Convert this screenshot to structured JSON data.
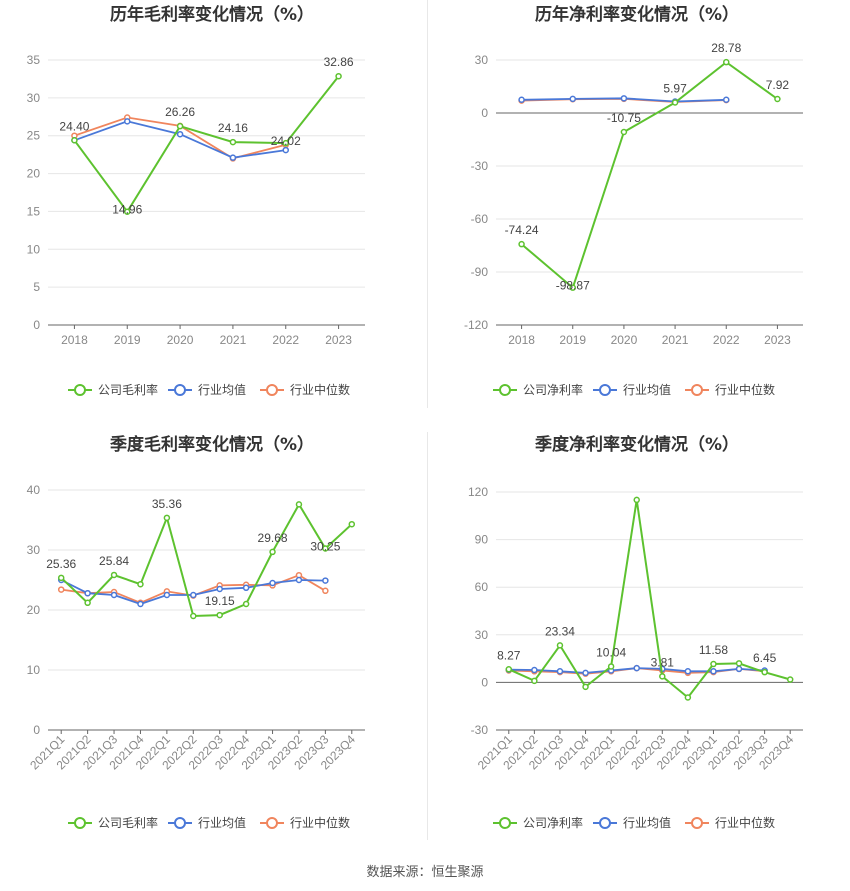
{
  "source_label": "数据来源：恒生聚源",
  "colors": {
    "company": "#5dc22f",
    "average": "#4a78d8",
    "median": "#f0855d"
  },
  "chart_data": [
    {
      "id": "annual-gross",
      "type": "line",
      "title": "历年毛利率变化情况（%）",
      "categories": [
        "2018",
        "2019",
        "2020",
        "2021",
        "2022",
        "2023"
      ],
      "ylim": [
        0,
        35
      ],
      "yticks": [
        0,
        5,
        10,
        15,
        20,
        25,
        30,
        35
      ],
      "rotate_x": false,
      "series": [
        {
          "name": "公司毛利率",
          "role": "company",
          "values": [
            24.4,
            14.96,
            26.26,
            24.16,
            24.02,
            32.86
          ],
          "labels": [
            "24.40",
            "14.96",
            "26.26",
            "24.16",
            "24.02",
            "32.86"
          ]
        },
        {
          "name": "行业均值",
          "role": "average",
          "values": [
            24.4,
            26.9,
            25.2,
            22.1,
            23.1,
            null
          ]
        },
        {
          "name": "行业中位数",
          "role": "median",
          "values": [
            25.0,
            27.4,
            26.3,
            22.0,
            23.8,
            null
          ]
        }
      ]
    },
    {
      "id": "annual-net",
      "type": "line",
      "title": "历年净利率变化情况（%）",
      "categories": [
        "2018",
        "2019",
        "2020",
        "2021",
        "2022",
        "2023"
      ],
      "ylim": [
        -120,
        30
      ],
      "yticks": [
        -120,
        -90,
        -60,
        -30,
        0,
        30
      ],
      "rotate_x": false,
      "series": [
        {
          "name": "公司净利率",
          "role": "company",
          "values": [
            -74.24,
            -98.87,
            -10.75,
            5.97,
            28.78,
            7.92
          ],
          "labels": [
            "-74.24",
            "-98.87",
            "-10.75",
            "5.97",
            "28.78",
            "7.92"
          ]
        },
        {
          "name": "行业均值",
          "role": "average",
          "values": [
            7.5,
            8.0,
            8.3,
            6.5,
            7.5,
            null
          ]
        },
        {
          "name": "行业中位数",
          "role": "median",
          "values": [
            7.0,
            7.8,
            8.0,
            6.2,
            7.3,
            null
          ]
        }
      ]
    },
    {
      "id": "quarterly-gross",
      "type": "line",
      "title": "季度毛利率变化情况（%）",
      "categories": [
        "2021Q1",
        "2021Q2",
        "2021Q3",
        "2021Q4",
        "2022Q1",
        "2022Q2",
        "2022Q3",
        "2022Q4",
        "2023Q1",
        "2023Q2",
        "2023Q3",
        "2023Q4"
      ],
      "ylim": [
        0,
        40
      ],
      "yticks": [
        0,
        10,
        20,
        30,
        40
      ],
      "rotate_x": true,
      "series": [
        {
          "name": "公司毛利率",
          "role": "company",
          "values": [
            25.36,
            21.2,
            25.84,
            24.3,
            35.36,
            19.0,
            19.15,
            21.0,
            29.68,
            37.6,
            30.25,
            34.3
          ],
          "labels": [
            "25.36",
            null,
            "25.84",
            null,
            "35.36",
            null,
            "19.15",
            null,
            "29.68",
            null,
            "30.25",
            null
          ]
        },
        {
          "name": "行业均值",
          "role": "average",
          "values": [
            25.0,
            22.8,
            22.5,
            21.0,
            22.5,
            22.5,
            23.5,
            23.7,
            24.5,
            25.0,
            24.9,
            null
          ]
        },
        {
          "name": "行业中位数",
          "role": "median",
          "values": [
            23.4,
            22.8,
            23.0,
            21.2,
            23.1,
            22.4,
            24.1,
            24.2,
            24.1,
            25.8,
            23.2,
            null
          ]
        }
      ]
    },
    {
      "id": "quarterly-net",
      "type": "line",
      "title": "季度净利率变化情况（%）",
      "categories": [
        "2021Q1",
        "2021Q2",
        "2021Q3",
        "2021Q4",
        "2022Q1",
        "2022Q2",
        "2022Q3",
        "2022Q4",
        "2023Q1",
        "2023Q2",
        "2023Q3",
        "2023Q4"
      ],
      "ylim": [
        -30,
        120
      ],
      "yticks": [
        -30,
        0,
        30,
        60,
        90,
        120
      ],
      "rotate_x": true,
      "series": [
        {
          "name": "公司净利率",
          "role": "company",
          "values": [
            8.27,
            1.0,
            23.34,
            -2.8,
            10.04,
            115.0,
            3.81,
            -9.5,
            11.58,
            12.0,
            6.45,
            1.8
          ],
          "labels": [
            "8.27",
            null,
            "23.34",
            null,
            "10.04",
            null,
            "3.81",
            null,
            "11.58",
            null,
            "6.45",
            null
          ]
        },
        {
          "name": "行业均值",
          "role": "average",
          "values": [
            8.0,
            7.8,
            7.0,
            6.0,
            7.5,
            9.0,
            8.5,
            7.0,
            7.0,
            8.5,
            7.5,
            null
          ]
        },
        {
          "name": "行业中位数",
          "role": "median",
          "values": [
            7.5,
            7.0,
            6.5,
            5.5,
            7.0,
            9.0,
            7.5,
            6.0,
            6.5,
            8.5,
            7.0,
            null
          ]
        }
      ]
    }
  ]
}
